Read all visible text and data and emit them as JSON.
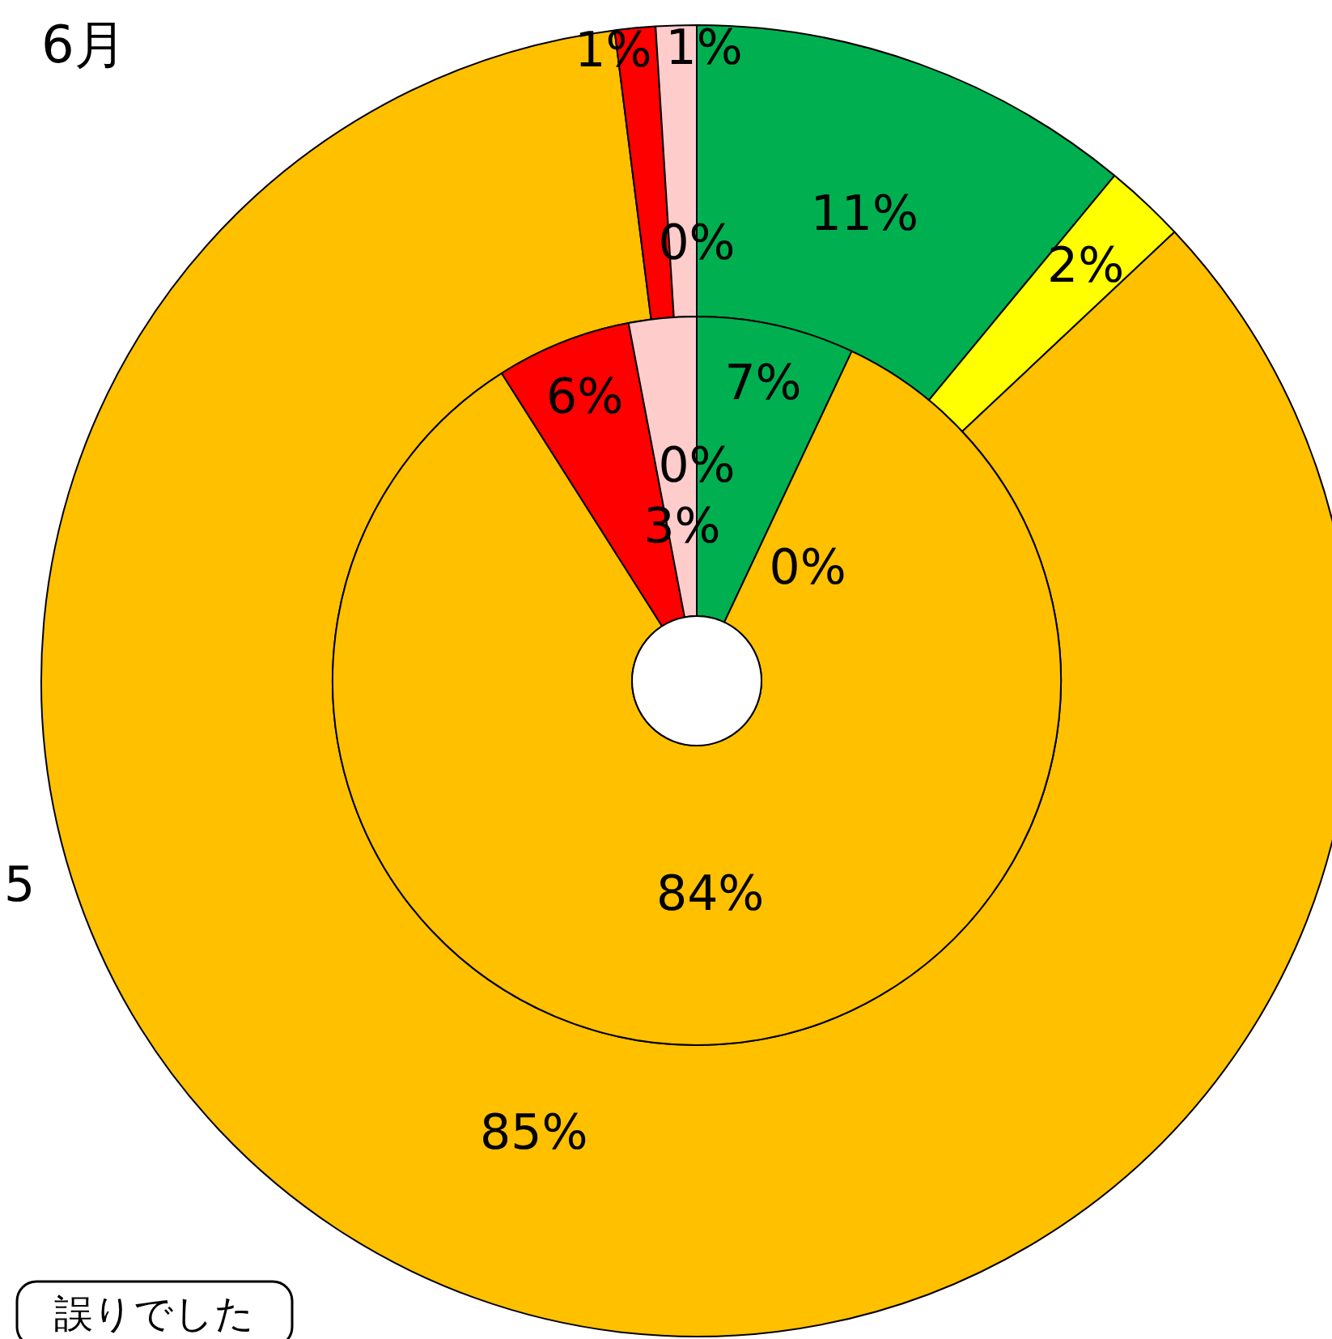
{
  "chart_data": {
    "type": "donut",
    "title": "6月",
    "categories": [
      null,
      null,
      null,
      null,
      null,
      null
    ],
    "colors": [
      "#00b050",
      "#ffff00",
      "#ffc000",
      "#ff0000",
      "#ffcccc",
      "#00b0f0"
    ],
    "series": [
      {
        "values": [
          11,
          2,
          85,
          1,
          1,
          0
        ],
        "value_labels": [
          "11%",
          "2%",
          "85%",
          "1%",
          "1%",
          "0%"
        ]
      },
      {
        "values": [
          7,
          0,
          84,
          6,
          3,
          0
        ],
        "value_labels": [
          "7%",
          "0%",
          "84%",
          "6%",
          "3%",
          "0%"
        ]
      }
    ],
    "annotations": [
      "5",
      "誤りでした"
    ]
  }
}
